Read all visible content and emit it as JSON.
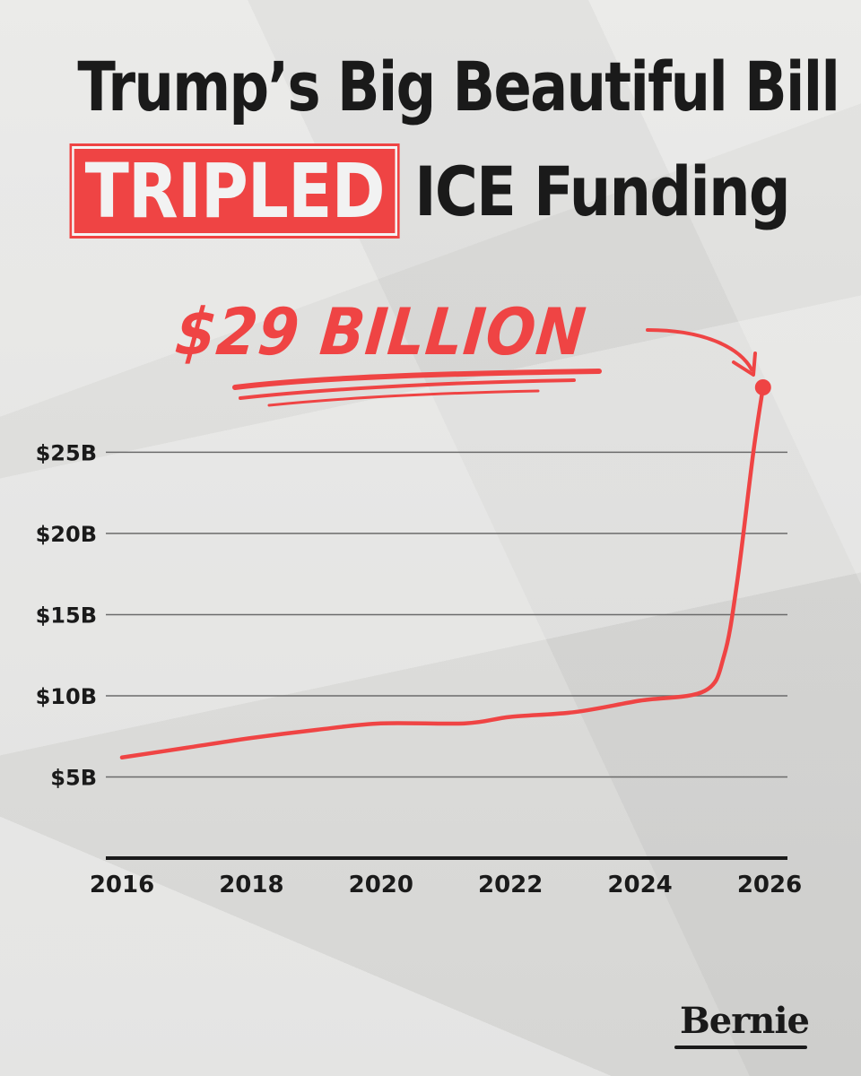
{
  "title": {
    "line1": "Trump’s Big Beautiful Bill",
    "highlight": "TRIPLED",
    "line2_rest": "ICE Funding"
  },
  "callout": "$29 BILLION",
  "logo": "Bernie",
  "colors": {
    "accent": "#ef4444",
    "text": "#1a1a1a",
    "grid": "#6b6b6b"
  },
  "chart_data": {
    "type": "line",
    "title": "Trump’s Big Beautiful Bill TRIPLED ICE Funding",
    "xlabel": "",
    "ylabel": "",
    "x_ticks": [
      2016,
      2018,
      2020,
      2022,
      2024,
      2026
    ],
    "y_ticks": [
      {
        "value": 5,
        "label": "$5B"
      },
      {
        "value": 10,
        "label": "$10B"
      },
      {
        "value": 15,
        "label": "$15B"
      },
      {
        "value": 20,
        "label": "$20B"
      },
      {
        "value": 25,
        "label": "$25B"
      }
    ],
    "xlim": [
      2016,
      2026
    ],
    "ylim": [
      0,
      29
    ],
    "grid": true,
    "series": [
      {
        "color": "#ef4444",
        "points": [
          {
            "x": 2016.0,
            "y": 6.2
          },
          {
            "x": 2017.0,
            "y": 6.8
          },
          {
            "x": 2018.0,
            "y": 7.4
          },
          {
            "x": 2019.0,
            "y": 7.9
          },
          {
            "x": 2020.0,
            "y": 8.3
          },
          {
            "x": 2021.3,
            "y": 8.3
          },
          {
            "x": 2022.0,
            "y": 8.7
          },
          {
            "x": 2023.0,
            "y": 9.0
          },
          {
            "x": 2024.0,
            "y": 9.7
          },
          {
            "x": 2025.0,
            "y": 10.3
          },
          {
            "x": 2025.3,
            "y": 12.5
          },
          {
            "x": 2025.5,
            "y": 17.0
          },
          {
            "x": 2025.75,
            "y": 25.0
          },
          {
            "x": 2025.9,
            "y": 29.0
          }
        ]
      }
    ],
    "annotations": [
      {
        "text": "$29 BILLION",
        "x": 2025.9,
        "y": 29.0
      }
    ]
  }
}
